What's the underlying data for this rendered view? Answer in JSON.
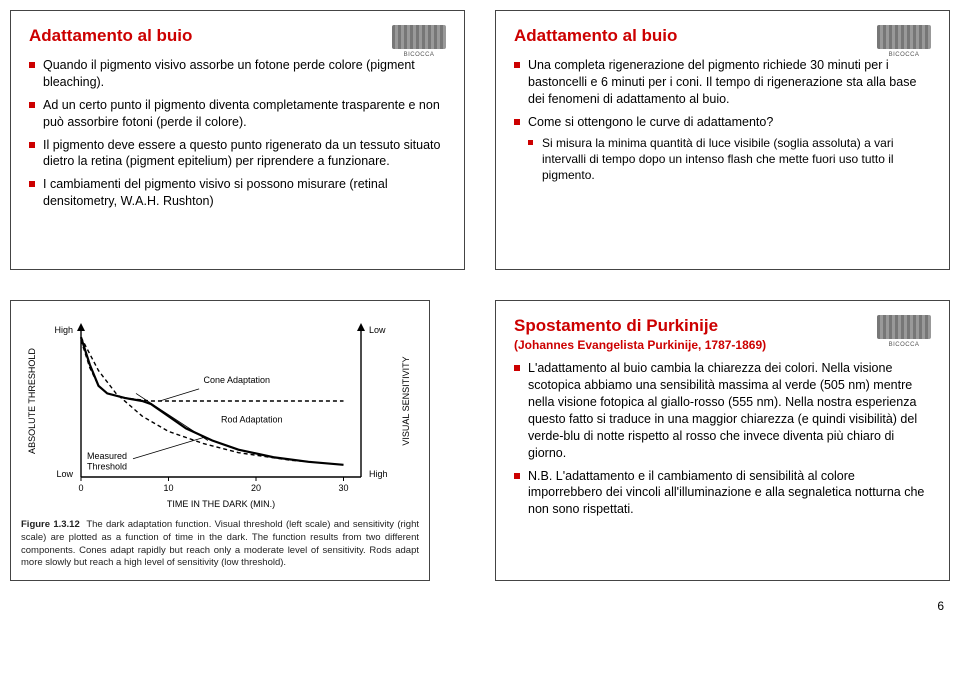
{
  "slide1": {
    "title": "Adattamento al buio",
    "bullets": [
      "Quando il pigmento visivo assorbe un fotone perde colore (pigment bleaching).",
      "Ad un certo punto il pigmento diventa completamente trasparente e non può assorbire fotoni (perde il colore).",
      "Il pigmento deve essere a questo punto rigenerato da un tessuto situato dietro la retina (pigment epitelium) per riprendere a funzionare.",
      "I cambiamenti del pigmento visivo si possono misurare (retinal densitometry, W.A.H. Rushton)"
    ]
  },
  "slide2": {
    "title": "Adattamento al buio",
    "bullets": [
      "Una completa rigenerazione del pigmento richiede 30 minuti per i bastoncelli e 6 minuti per i coni. Il tempo di rigenerazione sta alla base dei fenomeni di adattamento al buio.",
      "Come si ottengono le curve di adattamento?"
    ],
    "sub": [
      "Si misura la minima quantità di luce visibile (soglia assoluta) a vari intervalli di tempo dopo un intenso flash che mette fuori uso tutto il pigmento."
    ]
  },
  "slide3": {
    "chart": {
      "type": "line",
      "x_label": "TIME IN THE DARK (MIN.)",
      "y_left_label": "ABSOLUTE THRESHOLD",
      "y_right_label": "VISUAL SENSITIVITY",
      "y_left_ticks": [
        "High",
        "Low"
      ],
      "y_right_ticks": [
        "Low",
        "High"
      ],
      "x_ticks": [
        0,
        10,
        20,
        30
      ],
      "xlim": [
        0,
        32
      ],
      "series": {
        "rod": {
          "label": "Rod Adaptation",
          "pts": [
            [
              0,
              0.92
            ],
            [
              2,
              0.7
            ],
            [
              4,
              0.55
            ],
            [
              7,
              0.4
            ],
            [
              10,
              0.3
            ],
            [
              14,
              0.22
            ],
            [
              18,
              0.16
            ],
            [
              24,
              0.11
            ],
            [
              30,
              0.08
            ]
          ]
        },
        "cone": {
          "label": "Cone Adaptation",
          "pts": [
            [
              0,
              0.9
            ],
            [
              1,
              0.72
            ],
            [
              2,
              0.6
            ],
            [
              3,
              0.55
            ],
            [
              5,
              0.52
            ],
            [
              8,
              0.5
            ],
            [
              12,
              0.5
            ],
            [
              18,
              0.5
            ],
            [
              30,
              0.5
            ]
          ]
        },
        "meas": {
          "label": "Measured Threshold",
          "pts": [
            [
              0,
              0.92
            ],
            [
              1,
              0.74
            ],
            [
              2,
              0.6
            ],
            [
              3,
              0.55
            ],
            [
              5,
              0.52
            ],
            [
              7,
              0.5
            ],
            [
              8,
              0.48
            ],
            [
              10,
              0.4
            ],
            [
              12,
              0.32
            ],
            [
              15,
              0.24
            ],
            [
              18,
              0.18
            ],
            [
              22,
              0.13
            ],
            [
              26,
              0.1
            ],
            [
              30,
              0.08
            ]
          ]
        }
      },
      "line_color": "#000000",
      "bg": "#ffffff",
      "font_size": 9
    },
    "caption_lead": "Figure 1.3.12",
    "caption": "The dark adaptation function. Visual threshold (left scale) and sensitivity (right scale) are plotted as a function of time in the dark. The function results from two different components. Cones adapt rapidly but reach only a moderate level of sensitivity. Rods adapt more slowly but reach a high level of sensitivity (low threshold)."
  },
  "slide4": {
    "title": "Spostamento di Purkinije",
    "subtitle": "(Johannes Evangelista Purkinije, 1787-1869)",
    "bullets": [
      "L'adattamento al buio cambia la chiarezza dei colori. Nella visione scotopica abbiamo una sensibilità massima al verde (505 nm) mentre nella visione fotopica al giallo-rosso (555 nm). Nella nostra esperienza questo fatto si traduce in una maggior chiarezza (e quindi visibilità) del verde-blu di notte rispetto al rosso che invece diventa più chiaro di giorno.",
      "N.B. L'adattamento e il cambiamento di sensibilità al colore imporrebbero dei vincoli all'illuminazione e alla segnaletica notturna che non sono rispettati."
    ]
  },
  "page_number": "6",
  "colors": {
    "accent": "#cc0000",
    "text": "#000000",
    "border": "#444444"
  }
}
